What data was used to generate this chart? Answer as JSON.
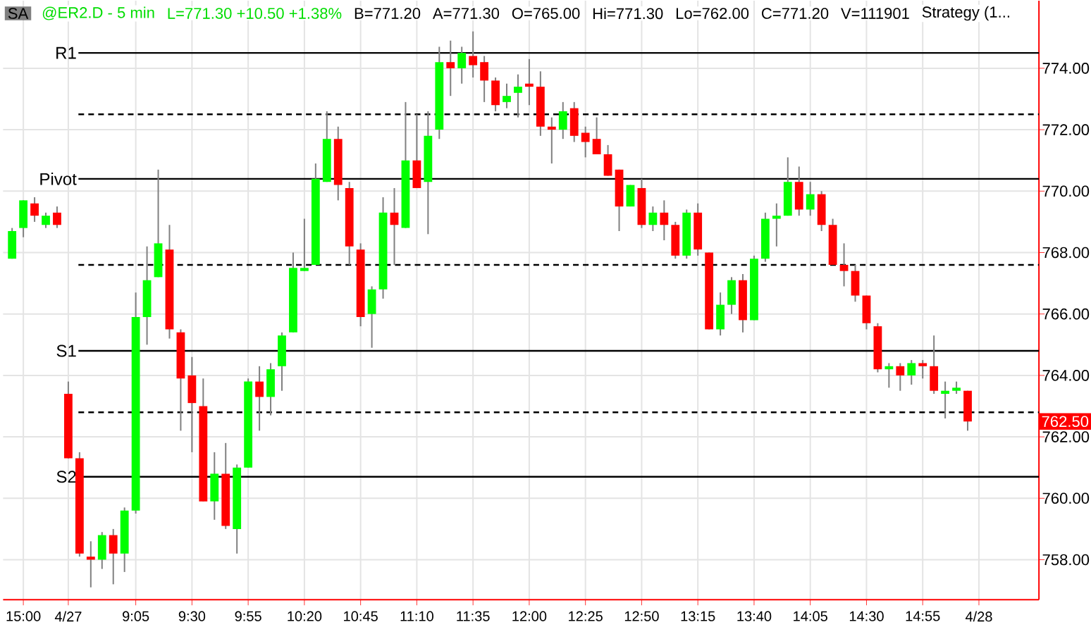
{
  "chart_data": {
    "type": "candlestick",
    "title": "@ER2.D - 5 min",
    "subtitle": "L=771.30  +10.50  +1.38%",
    "annotations": [
      "SA",
      "B=771.20",
      "A=771.30",
      "O=765.00",
      "Hi=771.30",
      "Lo=762.00",
      "C=771.20",
      "V=111901",
      "Strategy  (1...",
      "762.50"
    ],
    "categories": [
      null,
      "15:00",
      null,
      null,
      null,
      "4/27",
      null,
      null,
      null,
      null,
      null,
      "9:05",
      null,
      null,
      null,
      null,
      "9:30",
      null,
      null,
      null,
      null,
      "9:55",
      null,
      null,
      null,
      null,
      "10:20",
      null,
      null,
      null,
      null,
      "10:45",
      null,
      null,
      null,
      null,
      "11:10",
      null,
      null,
      null,
      null,
      "11:35",
      null,
      null,
      null,
      null,
      "12:00",
      null,
      null,
      null,
      null,
      "12:25",
      null,
      null,
      null,
      null,
      "12:50",
      null,
      null,
      null,
      null,
      "13:15",
      null,
      null,
      null,
      null,
      "13:40",
      null,
      null,
      null,
      null,
      "14:05",
      null,
      null,
      null,
      null,
      "14:30",
      null,
      null,
      null,
      null,
      "14:55",
      null,
      null,
      null,
      null,
      "4/28"
    ],
    "ohlc": [
      [
        767.8,
        768.8,
        767.8,
        768.7
      ],
      [
        768.8,
        769.7,
        768.5,
        769.7
      ],
      [
        769.6,
        769.8,
        769.0,
        769.2
      ],
      [
        768.9,
        769.3,
        768.8,
        769.2
      ],
      [
        769.3,
        769.5,
        768.8,
        768.9
      ],
      [
        763.4,
        763.8,
        761.3,
        761.3
      ],
      [
        761.3,
        761.5,
        758.1,
        758.2
      ],
      [
        758.1,
        758.6,
        757.1,
        758.0
      ],
      [
        758.0,
        758.9,
        757.7,
        758.8
      ],
      [
        758.8,
        759.0,
        757.2,
        758.2
      ],
      [
        758.2,
        759.7,
        757.6,
        759.6
      ],
      [
        759.6,
        766.7,
        759.5,
        765.9
      ],
      [
        765.9,
        768.2,
        765.0,
        767.1
      ],
      [
        767.2,
        770.7,
        767.2,
        768.3
      ],
      [
        768.1,
        768.9,
        765.2,
        765.5
      ],
      [
        765.4,
        765.5,
        762.2,
        763.9
      ],
      [
        764.0,
        764.6,
        761.5,
        763.1
      ],
      [
        763.0,
        763.9,
        759.9,
        759.9
      ],
      [
        759.9,
        761.5,
        759.3,
        760.8
      ],
      [
        760.8,
        761.8,
        759.0,
        759.1
      ],
      [
        759.0,
        761.1,
        758.2,
        761.0
      ],
      [
        761.0,
        763.9,
        761.0,
        763.8
      ],
      [
        763.8,
        764.3,
        762.2,
        763.3
      ],
      [
        763.3,
        764.4,
        762.7,
        764.2
      ],
      [
        764.3,
        765.4,
        763.5,
        765.3
      ],
      [
        765.4,
        768.0,
        765.4,
        767.5
      ],
      [
        767.4,
        769.1,
        767.4,
        767.5
      ],
      [
        767.6,
        770.9,
        767.6,
        770.4
      ],
      [
        770.3,
        772.6,
        770.3,
        771.7
      ],
      [
        771.7,
        772.1,
        769.7,
        770.2
      ],
      [
        770.1,
        770.3,
        767.6,
        768.2
      ],
      [
        768.1,
        768.3,
        765.6,
        765.9
      ],
      [
        766.0,
        766.9,
        764.9,
        766.8
      ],
      [
        766.8,
        769.8,
        766.5,
        769.3
      ],
      [
        769.3,
        770.1,
        767.6,
        768.9
      ],
      [
        768.8,
        772.9,
        768.8,
        771.0
      ],
      [
        771.0,
        772.5,
        770.1,
        770.1
      ],
      [
        770.3,
        772.6,
        768.6,
        771.8
      ],
      [
        772.0,
        774.7,
        771.7,
        774.2
      ],
      [
        774.2,
        774.9,
        773.1,
        774.0
      ],
      [
        774.0,
        774.7,
        773.5,
        774.5
      ],
      [
        774.4,
        775.2,
        773.7,
        774.1
      ],
      [
        774.2,
        774.4,
        772.9,
        773.6
      ],
      [
        773.6,
        773.7,
        772.6,
        772.8
      ],
      [
        772.9,
        773.5,
        772.7,
        773.1
      ],
      [
        773.2,
        773.8,
        772.4,
        773.4
      ],
      [
        773.5,
        774.3,
        772.8,
        773.4
      ],
      [
        773.4,
        773.9,
        771.8,
        772.1
      ],
      [
        772.1,
        772.4,
        770.9,
        772.0
      ],
      [
        772.0,
        772.9,
        771.7,
        772.6
      ],
      [
        772.7,
        772.9,
        771.6,
        771.8
      ],
      [
        771.9,
        772.1,
        771.1,
        771.6
      ],
      [
        771.7,
        772.4,
        771.2,
        771.2
      ],
      [
        771.2,
        771.5,
        770.5,
        770.5
      ],
      [
        770.7,
        770.7,
        768.7,
        769.5
      ],
      [
        769.5,
        770.2,
        769.5,
        770.2
      ],
      [
        770.1,
        770.4,
        768.8,
        768.9
      ],
      [
        768.9,
        769.5,
        768.7,
        769.3
      ],
      [
        769.3,
        769.7,
        768.4,
        768.9
      ],
      [
        768.9,
        769.0,
        767.8,
        767.9
      ],
      [
        767.9,
        769.4,
        767.8,
        769.3
      ],
      [
        769.3,
        769.6,
        767.9,
        768.1
      ],
      [
        768.0,
        768.0,
        765.5,
        765.5
      ],
      [
        765.5,
        766.7,
        765.3,
        766.3
      ],
      [
        766.3,
        767.2,
        766.0,
        767.1
      ],
      [
        767.1,
        767.3,
        765.4,
        765.8
      ],
      [
        765.8,
        767.9,
        765.8,
        767.8
      ],
      [
        767.8,
        769.3,
        767.7,
        769.1
      ],
      [
        769.1,
        769.6,
        768.2,
        769.2
      ],
      [
        769.2,
        771.1,
        769.2,
        770.3
      ],
      [
        770.3,
        770.8,
        769.2,
        769.4
      ],
      [
        769.4,
        770.3,
        769.2,
        769.9
      ],
      [
        769.9,
        770.0,
        768.7,
        768.9
      ],
      [
        768.9,
        769.1,
        767.6,
        767.6
      ],
      [
        767.6,
        768.3,
        766.9,
        767.4
      ],
      [
        767.4,
        767.6,
        766.4,
        766.6
      ],
      [
        766.6,
        766.6,
        765.5,
        765.7
      ],
      [
        765.6,
        765.7,
        764.1,
        764.2
      ],
      [
        764.2,
        764.4,
        763.6,
        764.3
      ],
      [
        764.3,
        764.4,
        763.5,
        764.0
      ],
      [
        764.0,
        764.5,
        763.7,
        764.4
      ],
      [
        764.4,
        764.5,
        763.9,
        764.3
      ],
      [
        764.3,
        765.3,
        763.4,
        763.5
      ],
      [
        763.4,
        763.8,
        762.6,
        763.5
      ],
      [
        763.5,
        763.8,
        763.4,
        763.6
      ],
      [
        763.5,
        763.5,
        762.2,
        762.5
      ],
      null
    ],
    "ylim": [
      756.7,
      776.2
    ],
    "yticks": [
      {
        "value": 758,
        "label": "758.00"
      },
      {
        "value": 760,
        "label": "760.00"
      },
      {
        "value": 762,
        "label": "762.00"
      },
      {
        "value": 764,
        "label": "764.00"
      },
      {
        "value": 766,
        "label": "766.00"
      },
      {
        "value": 768,
        "label": "768.00"
      },
      {
        "value": 770,
        "label": "770.00"
      },
      {
        "value": 772,
        "label": "772.00"
      },
      {
        "value": 774,
        "label": "774.00"
      }
    ],
    "grid": true,
    "ref_lines": [
      {
        "axis": "y",
        "value": 774.5,
        "label": "R1",
        "color": "#000000",
        "line_style": "solid"
      },
      {
        "axis": "y",
        "value": 772.5,
        "color": "#000000",
        "line_style": "dashed"
      },
      {
        "axis": "y",
        "value": 770.4,
        "label": "Pivot",
        "color": "#000000",
        "line_style": "solid"
      },
      {
        "axis": "y",
        "value": 767.6,
        "color": "#000000",
        "line_style": "dashed"
      },
      {
        "axis": "y",
        "value": 764.8,
        "label": "S1",
        "color": "#000000",
        "line_style": "solid"
      },
      {
        "axis": "y",
        "value": 762.8,
        "color": "#000000",
        "line_style": "dashed"
      },
      {
        "axis": "y",
        "value": 760.7,
        "label": "S2",
        "color": "#000000",
        "line_style": "solid"
      }
    ]
  }
}
